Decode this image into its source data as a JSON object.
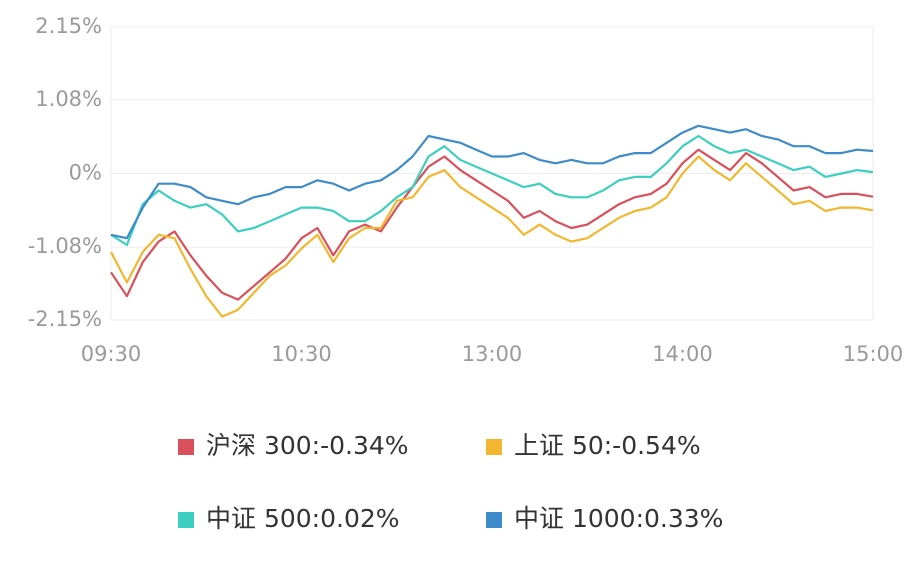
{
  "chart_data": {
    "type": "line",
    "categories": [
      "09:30",
      null,
      null,
      null,
      null,
      null,
      null,
      null,
      null,
      null,
      null,
      null,
      "10:30",
      null,
      null,
      null,
      null,
      null,
      null,
      null,
      null,
      null,
      null,
      null,
      "13:00",
      null,
      null,
      null,
      null,
      null,
      null,
      null,
      null,
      null,
      null,
      null,
      "14:00",
      null,
      null,
      null,
      null,
      null,
      null,
      null,
      null,
      null,
      null,
      null,
      "15:00"
    ],
    "ylim": [
      -2.15,
      2.15
    ],
    "yticks": [
      {
        "value": -2.15,
        "label": "-2.15%"
      },
      {
        "value": -1.08,
        "label": "-1.08%"
      },
      {
        "value": 0,
        "label": "0%"
      },
      {
        "value": 1.08,
        "label": "1.08%"
      },
      {
        "value": 2.15,
        "label": "2.15%"
      }
    ],
    "grid": true,
    "series": [
      {
        "name": "沪深 300:-0.34%",
        "color": "#d9505a",
        "values": [
          -1.45,
          -1.8,
          -1.3,
          -1.0,
          -0.85,
          -1.2,
          -1.5,
          -1.75,
          -1.85,
          -1.65,
          -1.45,
          -1.25,
          -0.95,
          -0.8,
          -1.2,
          -0.85,
          -0.75,
          -0.85,
          -0.5,
          -0.2,
          0.1,
          0.25,
          0.05,
          -0.1,
          -0.25,
          -0.4,
          -0.65,
          -0.55,
          -0.7,
          -0.8,
          -0.75,
          -0.6,
          -0.45,
          -0.35,
          -0.3,
          -0.15,
          0.15,
          0.35,
          0.2,
          0.05,
          0.3,
          0.15,
          -0.05,
          -0.25,
          -0.2,
          -0.35,
          -0.3,
          -0.3,
          -0.34
        ]
      },
      {
        "name": "上证 50:-0.54%",
        "color": "#f3b72f",
        "values": [
          -1.15,
          -1.6,
          -1.15,
          -0.9,
          -0.95,
          -1.4,
          -1.8,
          -2.1,
          -2.0,
          -1.75,
          -1.5,
          -1.35,
          -1.1,
          -0.9,
          -1.3,
          -0.95,
          -0.8,
          -0.8,
          -0.4,
          -0.35,
          -0.05,
          0.05,
          -0.2,
          -0.35,
          -0.5,
          -0.65,
          -0.9,
          -0.75,
          -0.9,
          -1.0,
          -0.95,
          -0.8,
          -0.65,
          -0.55,
          -0.5,
          -0.35,
          0.0,
          0.25,
          0.05,
          -0.1,
          0.15,
          -0.05,
          -0.25,
          -0.45,
          -0.4,
          -0.55,
          -0.5,
          -0.5,
          -0.54
        ]
      },
      {
        "name": "中证 500:0.02%",
        "color": "#3ccfbf",
        "values": [
          -0.9,
          -1.05,
          -0.45,
          -0.25,
          -0.4,
          -0.5,
          -0.45,
          -0.6,
          -0.85,
          -0.8,
          -0.7,
          -0.6,
          -0.5,
          -0.5,
          -0.55,
          -0.7,
          -0.7,
          -0.55,
          -0.35,
          -0.2,
          0.25,
          0.4,
          0.2,
          0.1,
          0.0,
          -0.1,
          -0.2,
          -0.15,
          -0.3,
          -0.35,
          -0.35,
          -0.25,
          -0.1,
          -0.05,
          -0.05,
          0.15,
          0.4,
          0.55,
          0.4,
          0.3,
          0.35,
          0.25,
          0.15,
          0.05,
          0.1,
          -0.05,
          0.0,
          0.05,
          0.02
        ]
      },
      {
        "name": "中证 1000:0.33%",
        "color": "#3d8cc9",
        "values": [
          -0.9,
          -0.95,
          -0.5,
          -0.15,
          -0.15,
          -0.2,
          -0.35,
          -0.4,
          -0.45,
          -0.35,
          -0.3,
          -0.2,
          -0.2,
          -0.1,
          -0.15,
          -0.25,
          -0.15,
          -0.1,
          0.05,
          0.25,
          0.55,
          0.5,
          0.45,
          0.35,
          0.25,
          0.25,
          0.3,
          0.2,
          0.15,
          0.2,
          0.15,
          0.15,
          0.25,
          0.3,
          0.3,
          0.45,
          0.6,
          0.7,
          0.65,
          0.6,
          0.65,
          0.55,
          0.5,
          0.4,
          0.4,
          0.3,
          0.3,
          0.35,
          0.33
        ]
      }
    ]
  }
}
